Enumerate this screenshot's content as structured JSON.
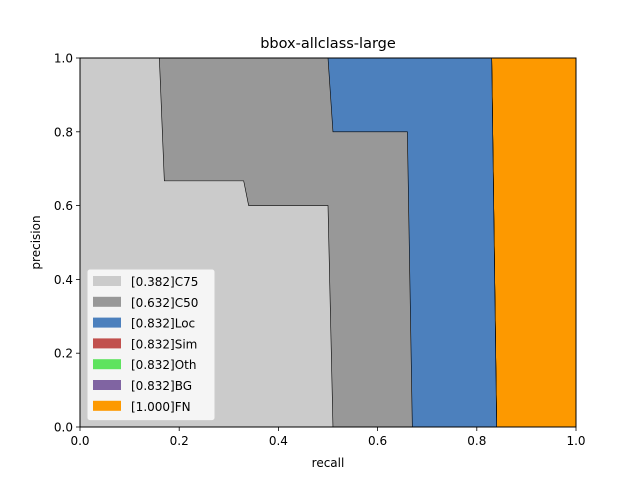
{
  "chart_data": {
    "type": "area",
    "title": "bbox-allclass-large",
    "xlabel": "recall",
    "ylabel": "precision",
    "xlim": [
      0,
      1
    ],
    "ylim": [
      0,
      1
    ],
    "xticks": [
      "0.0",
      "0.2",
      "0.4",
      "0.6",
      "0.8",
      "1.0"
    ],
    "yticks": [
      "0.0",
      "0.2",
      "0.4",
      "0.6",
      "0.8",
      "1.0"
    ],
    "legend_position": "lower-left",
    "series": [
      {
        "name": "C75",
        "label": "[0.382]C75",
        "color": "#cbcbcb",
        "curve": [
          [
            0.0,
            1.0
          ],
          [
            0.16,
            1.0
          ],
          [
            0.17,
            0.667
          ],
          [
            0.33,
            0.667
          ],
          [
            0.34,
            0.6
          ],
          [
            0.5,
            0.6
          ],
          [
            0.51,
            0.0
          ]
        ]
      },
      {
        "name": "C50",
        "label": "[0.632]C50",
        "color": "#989898",
        "curve": [
          [
            0.0,
            1.0
          ],
          [
            0.5,
            1.0
          ],
          [
            0.51,
            0.8
          ],
          [
            0.66,
            0.8
          ],
          [
            0.67,
            0.0
          ]
        ]
      },
      {
        "name": "Loc",
        "label": "[0.832]Loc",
        "color": "#4c80bd",
        "curve": [
          [
            0.0,
            1.0
          ],
          [
            0.83,
            1.0
          ],
          [
            0.84,
            0.0
          ]
        ]
      },
      {
        "name": "Sim",
        "label": "[0.832]Sim",
        "color": "#c1504d",
        "curve": [
          [
            0.0,
            1.0
          ],
          [
            0.83,
            1.0
          ],
          [
            0.84,
            0.0
          ]
        ]
      },
      {
        "name": "Oth",
        "label": "[0.832]Oth",
        "color": "#5ee35e",
        "curve": [
          [
            0.0,
            1.0
          ],
          [
            0.83,
            1.0
          ],
          [
            0.84,
            0.0
          ]
        ]
      },
      {
        "name": "BG",
        "label": "[0.832]BG",
        "color": "#8064a2",
        "curve": [
          [
            0.0,
            1.0
          ],
          [
            0.83,
            1.0
          ],
          [
            0.84,
            0.0
          ]
        ]
      },
      {
        "name": "FN",
        "label": "[1.000]FN",
        "color": "#fd9900",
        "curve": [
          [
            0.0,
            1.0
          ],
          [
            1.0,
            1.0
          ],
          [
            1.0,
            0.0
          ]
        ]
      }
    ]
  }
}
